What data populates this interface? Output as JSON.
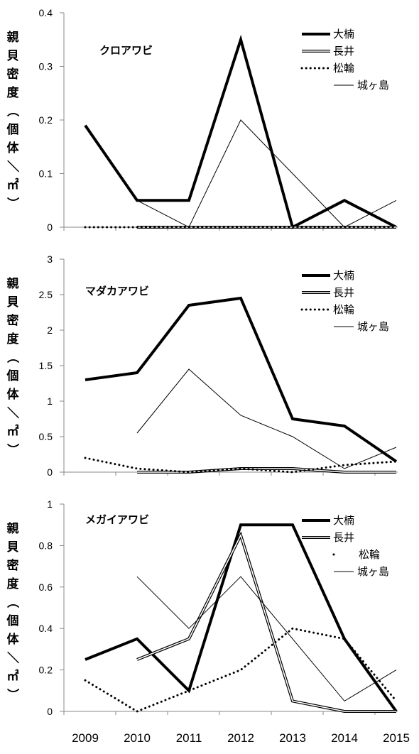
{
  "chart_data": [
    {
      "type": "line",
      "title": "クロアワビ",
      "ylabel": "親貝密度（個体／㎡）",
      "ylim": [
        0,
        0.4
      ],
      "yticks": [
        "0",
        "0.1",
        "0.2",
        "0.3",
        "0.4"
      ],
      "x": [
        "2009",
        "2010",
        "2011",
        "2012",
        "2013",
        "2014",
        "2015"
      ],
      "series": [
        {
          "name": "大楠",
          "style": "thick",
          "values": [
            0.19,
            0.05,
            0.05,
            0.35,
            0,
            0.05,
            0
          ]
        },
        {
          "name": "長井",
          "style": "double",
          "values": [
            null,
            0,
            0,
            0,
            0,
            0,
            0
          ]
        },
        {
          "name": "松輪",
          "style": "dotted",
          "values": [
            0,
            0,
            0,
            0,
            0,
            0,
            0
          ]
        },
        {
          "name": "城ヶ島",
          "style": "thin",
          "values": [
            null,
            0.05,
            0,
            0.2,
            0.1,
            0,
            0.05
          ]
        }
      ],
      "legend_position": "top-right"
    },
    {
      "type": "line",
      "title": "マダカアワビ",
      "ylabel": "親貝密度（個体／㎡）",
      "ylim": [
        0,
        3
      ],
      "yticks": [
        "0",
        "0.5",
        "1",
        "1.5",
        "2",
        "2.5",
        "3"
      ],
      "x": [
        "2009",
        "2010",
        "2011",
        "2012",
        "2013",
        "2014",
        "2015"
      ],
      "series": [
        {
          "name": "大楠",
          "style": "thick",
          "values": [
            1.3,
            1.4,
            2.35,
            2.45,
            0.75,
            0.65,
            0.15
          ]
        },
        {
          "name": "長井",
          "style": "double",
          "values": [
            null,
            0,
            0,
            0.05,
            0.05,
            0,
            0
          ]
        },
        {
          "name": "松輪",
          "style": "dotted",
          "values": [
            0.2,
            0.05,
            0,
            0.05,
            0,
            0.1,
            0.15
          ]
        },
        {
          "name": "城ヶ島",
          "style": "thin",
          "values": [
            null,
            0.55,
            1.45,
            0.8,
            0.5,
            0.05,
            0.35
          ]
        }
      ],
      "legend_position": "top-right"
    },
    {
      "type": "line",
      "title": "メガイアワビ",
      "ylabel": "親貝密度（個体／㎡）",
      "ylim": [
        0,
        1
      ],
      "yticks": [
        "0",
        "0.2",
        "0.4",
        "0.6",
        "0.8",
        "1"
      ],
      "x": [
        "2009",
        "2010",
        "2011",
        "2012",
        "2013",
        "2014",
        "2015"
      ],
      "series": [
        {
          "name": "大楠",
          "style": "thick",
          "values": [
            0.25,
            0.35,
            0.1,
            0.9,
            0.9,
            0.35,
            0
          ]
        },
        {
          "name": "長井",
          "style": "double",
          "values": [
            null,
            0.25,
            0.35,
            0.85,
            0.05,
            0,
            0
          ]
        },
        {
          "name": "松輪",
          "style": "dotted",
          "values": [
            0.15,
            0,
            0.1,
            0.2,
            0.4,
            0.35,
            0.05
          ]
        },
        {
          "name": "城ヶ島",
          "style": "thin",
          "values": [
            null,
            0.65,
            0.4,
            0.65,
            0.35,
            0.05,
            0.2
          ]
        }
      ],
      "legend_position": "top-right"
    }
  ]
}
